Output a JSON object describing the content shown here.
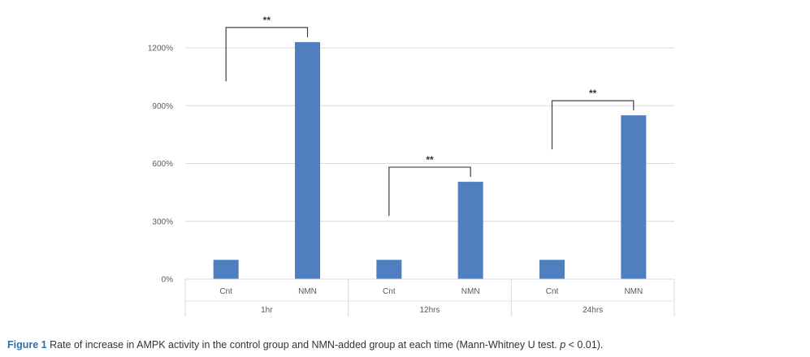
{
  "chart_data": {
    "type": "bar",
    "groups": [
      "1hr",
      "12hrs",
      "24hrs"
    ],
    "categories": [
      "Cnt",
      "NMN",
      "Cnt",
      "NMN",
      "Cnt",
      "NMN"
    ],
    "values": [
      100,
      1230,
      100,
      505,
      100,
      850
    ],
    "unit": "%",
    "ylim": [
      0,
      1200
    ],
    "yticks": [
      "0%",
      "300%",
      "600%",
      "900%",
      "1200%"
    ],
    "ytick_values": [
      0,
      300,
      600,
      900,
      1200
    ],
    "grid": true,
    "bar_color": "#4f7fbe",
    "significance": [
      {
        "from": 0,
        "to": 1,
        "label": "**"
      },
      {
        "from": 2,
        "to": 3,
        "label": "**"
      },
      {
        "from": 4,
        "to": 5,
        "label": "**"
      }
    ]
  },
  "caption": {
    "label": "Figure 1",
    "text": " Rate of increase in AMPK activity in the control group and NMN-added group at each time (Mann-Whitney U test. ",
    "p_symbol": "p",
    "p_value": " < 0.01)."
  }
}
